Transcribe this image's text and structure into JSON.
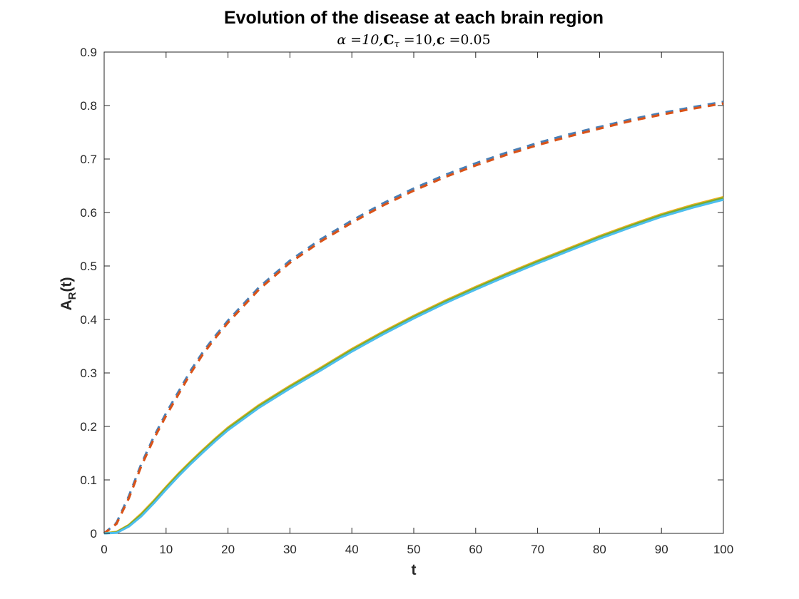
{
  "chart_data": {
    "type": "line",
    "title": "Evolution of the disease at each brain region",
    "subtitle": "α =10,C_τ =10,c =0.05",
    "subtitle_parts": {
      "alpha": "α =10,",
      "c_letter": "C",
      "tau": "τ",
      "c_tau_value": " =10,",
      "c_param": "c",
      "c_value": " =0.05"
    },
    "xlabel": "t",
    "ylabel_main": "A",
    "ylabel_sub": "R",
    "ylabel_tail": "(t)",
    "xlim": [
      0,
      100
    ],
    "ylim": [
      0,
      0.9
    ],
    "xticks": [
      0,
      10,
      20,
      30,
      40,
      50,
      60,
      70,
      80,
      90,
      100
    ],
    "yticks": [
      0,
      0.1,
      0.2,
      0.3,
      0.4,
      0.5,
      0.6,
      0.7,
      0.8,
      0.9
    ],
    "xtick_labels": [
      "0",
      "10",
      "20",
      "30",
      "40",
      "50",
      "60",
      "70",
      "80",
      "90",
      "100"
    ],
    "ytick_labels": [
      "0",
      "0.1",
      "0.2",
      "0.3",
      "0.4",
      "0.5",
      "0.6",
      "0.7",
      "0.8",
      "0.9"
    ],
    "grid": false,
    "series": [
      {
        "name": "dashed-upper-blue",
        "style": "dashed",
        "color": "#4a7fb5",
        "x": [
          0,
          2,
          4,
          6,
          8,
          10,
          12,
          14,
          16,
          18,
          20,
          25,
          30,
          35,
          40,
          45,
          50,
          55,
          60,
          65,
          70,
          75,
          80,
          85,
          90,
          95,
          100
        ],
        "y": [
          0,
          0.02,
          0.07,
          0.13,
          0.18,
          0.225,
          0.265,
          0.305,
          0.34,
          0.37,
          0.398,
          0.46,
          0.51,
          0.55,
          0.585,
          0.617,
          0.645,
          0.67,
          0.692,
          0.712,
          0.73,
          0.746,
          0.76,
          0.774,
          0.786,
          0.797,
          0.807
        ]
      },
      {
        "name": "dashed-upper-orange",
        "style": "dashed",
        "color": "#d95319",
        "x": [
          0,
          2,
          4,
          6,
          8,
          10,
          12,
          14,
          16,
          18,
          20,
          25,
          30,
          35,
          40,
          45,
          50,
          55,
          60,
          65,
          70,
          75,
          80,
          85,
          90,
          95,
          100
        ],
        "y": [
          0,
          0.018,
          0.066,
          0.126,
          0.176,
          0.22,
          0.26,
          0.3,
          0.336,
          0.366,
          0.394,
          0.456,
          0.506,
          0.546,
          0.581,
          0.613,
          0.641,
          0.666,
          0.688,
          0.708,
          0.726,
          0.742,
          0.757,
          0.771,
          0.783,
          0.794,
          0.804
        ]
      },
      {
        "name": "solid-lower-yellow",
        "style": "solid",
        "color": "#edb120",
        "x": [
          0,
          2,
          4,
          6,
          8,
          10,
          12,
          14,
          16,
          18,
          20,
          25,
          30,
          35,
          40,
          45,
          50,
          55,
          60,
          65,
          70,
          75,
          80,
          85,
          90,
          95,
          100
        ],
        "y": [
          0,
          0.003,
          0.016,
          0.037,
          0.061,
          0.087,
          0.112,
          0.135,
          0.157,
          0.178,
          0.198,
          0.24,
          0.276,
          0.31,
          0.345,
          0.377,
          0.407,
          0.435,
          0.461,
          0.486,
          0.51,
          0.533,
          0.556,
          0.577,
          0.597,
          0.614,
          0.629
        ]
      },
      {
        "name": "solid-lower-green",
        "style": "solid",
        "color": "#77ac30",
        "x": [
          0,
          2,
          4,
          6,
          8,
          10,
          12,
          14,
          16,
          18,
          20,
          25,
          30,
          35,
          40,
          45,
          50,
          55,
          60,
          65,
          70,
          75,
          80,
          85,
          90,
          95,
          100
        ],
        "y": [
          0,
          0.002,
          0.015,
          0.035,
          0.059,
          0.085,
          0.11,
          0.133,
          0.155,
          0.176,
          0.196,
          0.238,
          0.274,
          0.308,
          0.343,
          0.375,
          0.405,
          0.433,
          0.459,
          0.484,
          0.508,
          0.531,
          0.554,
          0.575,
          0.595,
          0.612,
          0.627
        ]
      },
      {
        "name": "solid-lower-cyan",
        "style": "solid",
        "color": "#4dbeee",
        "x": [
          0,
          2,
          4,
          6,
          8,
          10,
          12,
          14,
          16,
          18,
          20,
          25,
          30,
          35,
          40,
          45,
          50,
          55,
          60,
          65,
          70,
          75,
          80,
          85,
          90,
          95,
          100
        ],
        "y": [
          0,
          0.001,
          0.013,
          0.032,
          0.056,
          0.082,
          0.107,
          0.13,
          0.152,
          0.173,
          0.193,
          0.235,
          0.271,
          0.305,
          0.34,
          0.372,
          0.402,
          0.43,
          0.456,
          0.481,
          0.505,
          0.528,
          0.551,
          0.572,
          0.592,
          0.609,
          0.624
        ]
      }
    ]
  }
}
